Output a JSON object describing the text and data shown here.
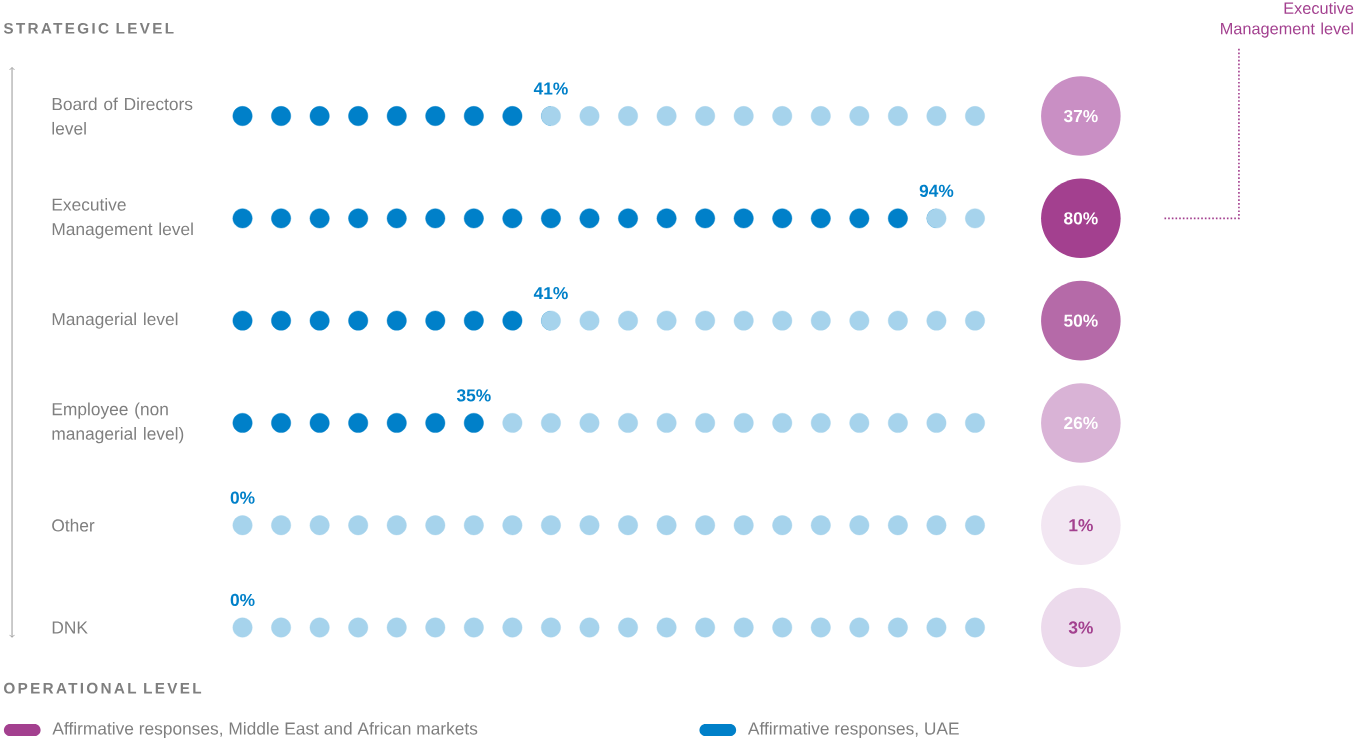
{
  "chart_data": {
    "type": "other",
    "categories": [
      "Board of Directors level",
      "Executive Management level",
      "Managerial level",
      "Employee (non managerial level)",
      "Other",
      "DNK"
    ],
    "series": [
      {
        "name": "Affirmative responses, Middle East and African markets",
        "color": "#a3408f",
        "colors": [
          "#c98fc4",
          "#a3408f",
          "#b56aa8",
          "#d9b3d6",
          "#f2e6f2",
          "#ecdaec"
        ],
        "values": [
          37,
          80,
          50,
          26,
          1,
          3
        ],
        "value_labels": [
          "37%",
          "80%",
          "50%",
          "26%",
          "1%",
          "3%"
        ]
      },
      {
        "name": "Affirmative responses, UAE",
        "color": "#0080c9",
        "values": [
          41,
          94,
          41,
          35,
          0,
          0
        ],
        "value_labels": [
          "41%",
          "94%",
          "41%",
          "35%",
          "0%",
          "0%"
        ]
      }
    ],
    "legend": "bottom",
    "annotations": [
      "STRATEGIC LEVEL",
      "OPERATIONAL LEVEL",
      "Executive Management level"
    ]
  }
}
